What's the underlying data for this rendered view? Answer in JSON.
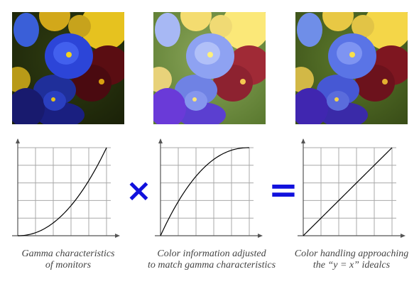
{
  "panels": [
    {
      "caption_line1": "Gamma characteristics",
      "caption_line2": "of monitors",
      "photo": "pansy-flowers-image-dark",
      "curve": "gamma-power-curve"
    },
    {
      "caption_line1": "Color information adjusted",
      "caption_line2": "to match gamma characteristics",
      "photo": "pansy-flowers-image-bright",
      "curve": "inverse-gamma-curve"
    },
    {
      "caption_line1": "Color handling approaching",
      "caption_line2": "the “y = x” idealcs",
      "photo": "pansy-flowers-image-corrected",
      "curve": "linear-curve"
    }
  ],
  "operators": {
    "multiply": "×",
    "equals": "="
  },
  "colors": {
    "operator": "#1111dd",
    "grid": "#a8a8a8",
    "axis": "#555555",
    "curve": "#000000",
    "caption": "#444444"
  }
}
